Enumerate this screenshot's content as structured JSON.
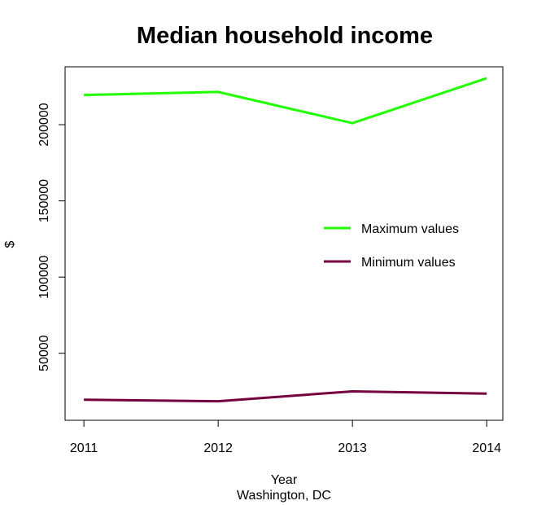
{
  "chart_data": {
    "type": "line",
    "title": "Median household income",
    "xlabel": "Year",
    "subtitle": "Washington, DC",
    "ylabel": "$",
    "x": [
      2011,
      2012,
      2013,
      2014
    ],
    "x_tick_labels": [
      "2011",
      "2012",
      "2013",
      "2014"
    ],
    "y_ticks": [
      50000,
      100000,
      150000,
      200000
    ],
    "y_tick_labels": [
      "50000",
      "100000",
      "150000",
      "200000"
    ],
    "xlim": [
      2010.86,
      2014.12
    ],
    "ylim": [
      6000,
      238000
    ],
    "grid": false,
    "legend_position": "right",
    "series": [
      {
        "name": "Maximum values",
        "color": "#22ff00",
        "values": [
          219500,
          221500,
          201000,
          230500
        ]
      },
      {
        "name": "Minimum values",
        "color": "#76003f",
        "values": [
          19500,
          18500,
          25000,
          23500
        ]
      }
    ]
  }
}
